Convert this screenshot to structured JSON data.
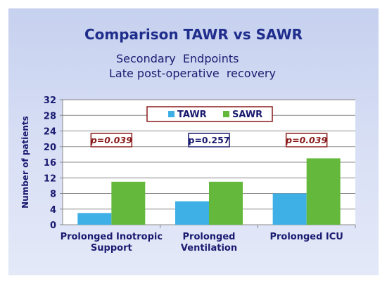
{
  "slide": {
    "title": "Comparison TAWR vs SAWR",
    "subtitle_line1": "Secondary  Endpoints",
    "subtitle_line2": "Late post-operative  recovery"
  },
  "colors": {
    "tawr": "#3fb0e6",
    "sawr": "#64b93c",
    "significant_text": "#8b1c1c",
    "nonsignificant_text": "#1a1a70",
    "box_border_significant": "#8b1c1c",
    "box_border_nonsignificant": "#1a1a70"
  },
  "chart_data": {
    "type": "bar",
    "categories": [
      [
        "Prolonged Inotropic",
        "Support"
      ],
      [
        "Prolonged",
        "Ventilation"
      ],
      [
        "Prolonged ICU"
      ]
    ],
    "series": [
      {
        "name": "TAWR",
        "values": [
          3,
          6,
          8
        ]
      },
      {
        "name": "SAWR",
        "values": [
          11,
          11,
          17
        ]
      }
    ],
    "ylabel": "Number of patients",
    "ylim": [
      0,
      32
    ],
    "yticks": [
      0,
      4,
      8,
      12,
      16,
      20,
      24,
      28,
      32
    ],
    "grid": true,
    "legend_position": "top-center",
    "annotations": [
      {
        "text": "p=0.039",
        "significant": true
      },
      {
        "text": "p=0.257",
        "significant": false
      },
      {
        "text": "p=0.039",
        "significant": true
      }
    ]
  }
}
